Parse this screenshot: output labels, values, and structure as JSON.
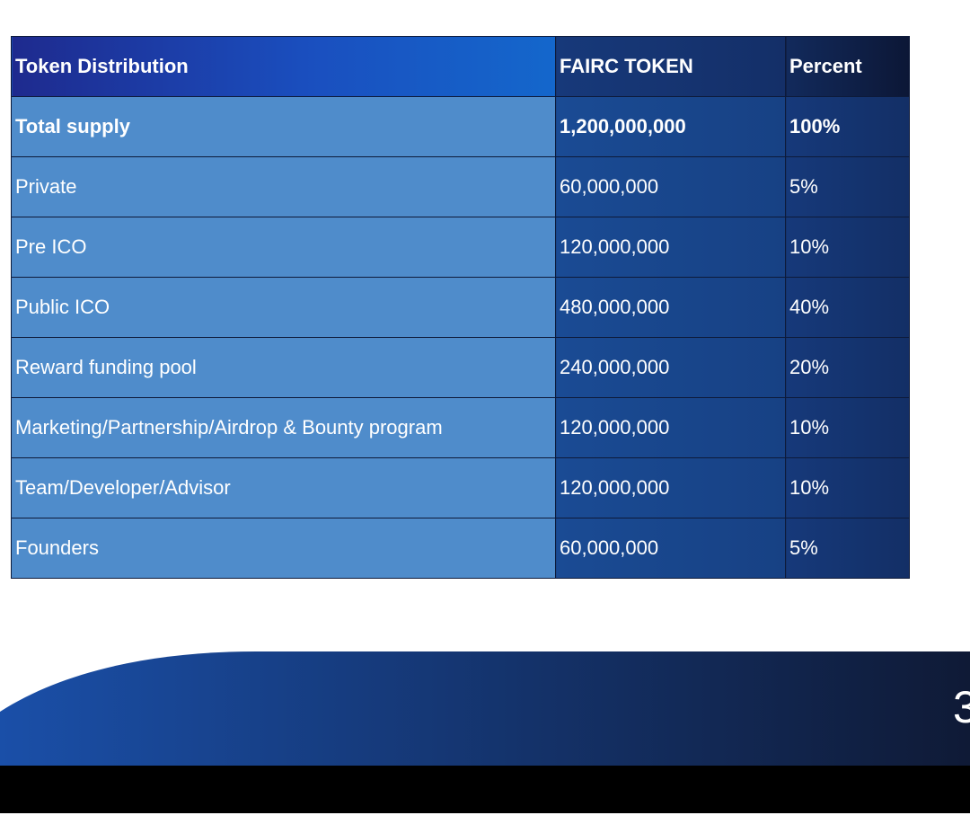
{
  "table": {
    "headers": [
      "Token Distribution",
      "FAIRC TOKEN",
      "Percent"
    ],
    "total": {
      "name": "Total supply",
      "amount": "1,200,000,000",
      "percent": "100%"
    },
    "rows": [
      {
        "name": "Private",
        "amount": "60,000,000",
        "percent": "5%"
      },
      {
        "name": "Pre ICO",
        "amount": "120,000,000",
        "percent": "10%"
      },
      {
        "name": "Public ICO",
        "amount": "480,000,000",
        "percent": "40%"
      },
      {
        "name": "Reward funding pool",
        "amount": "240,000,000",
        "percent": "20%"
      },
      {
        "name": "Marketing/Partnership/Airdrop & Bounty program",
        "amount": "120,000,000",
        "percent": "10%"
      },
      {
        "name": "Team/Developer/Advisor",
        "amount": "120,000,000",
        "percent": "10%"
      },
      {
        "name": "Founders",
        "amount": "60,000,000",
        "percent": "5%"
      }
    ]
  },
  "footer": {
    "page_number": "3"
  },
  "colors": {
    "header_blue": "#1a4fbf",
    "name_cell": "#4f8ccb",
    "dark_navy": "#132f66",
    "footer_band_start": "#1a4fa8",
    "footer_band_end": "#0f1a36"
  }
}
